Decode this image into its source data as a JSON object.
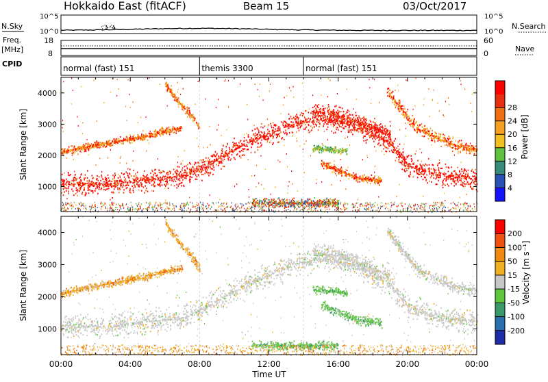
{
  "header": {
    "radar": "Hokkaido East (fitACF)",
    "beam": "Beam 15",
    "date": "03/Oct/2017"
  },
  "top_panels": {
    "nsky_label": "N.Sky",
    "nsearch_label": "N.Search",
    "noise_ticks": [
      "10^5",
      "10^0"
    ],
    "freq_label": "Freq.",
    "freq_unit": "[MHz]",
    "freq_ticks": [
      "18",
      "8"
    ],
    "nave_label": "Nave",
    "nave_ticks": [
      "60",
      "0"
    ],
    "cpid_label": "CPID",
    "cpid_segments": [
      {
        "label": "normal (fast) 151",
        "start": 0,
        "end": 8
      },
      {
        "label": "themis 3300",
        "start": 8,
        "end": 14
      },
      {
        "label": "normal (fast) 151",
        "start": 14,
        "end": 24
      }
    ]
  },
  "chart_data": [
    {
      "type": "heatmap",
      "name": "power",
      "ylabel": "Slant Range [km]",
      "ylim": [
        200,
        4500
      ],
      "yticks": [
        1000,
        2000,
        3000,
        4000
      ],
      "xlim": [
        0,
        24
      ],
      "colorbar": {
        "label": "Power [dB]",
        "ticks": [
          "4",
          "8",
          "12",
          "16",
          "20",
          "24",
          "28"
        ],
        "colors": [
          "#1414ff",
          "#2c52b8",
          "#3a8c7a",
          "#60c040",
          "#f0c020",
          "#f5a020",
          "#f07010",
          "#e83010",
          "#ff0000"
        ]
      },
      "bands": [
        {
          "t": [
            0,
            3,
            5,
            7,
            8,
            10,
            11,
            12,
            13,
            14,
            15,
            17,
            19,
            20,
            22,
            24
          ],
          "r": [
            1100,
            1100,
            1250,
            1350,
            1600,
            2200,
            2500,
            2700,
            2950,
            3100,
            3200,
            3000,
            2400,
            1700,
            1350,
            1250
          ],
          "w": 450,
          "level": "strong"
        },
        {
          "t": [
            0,
            1,
            2,
            3,
            4,
            5,
            6,
            7
          ],
          "r": [
            2100,
            2250,
            2350,
            2450,
            2550,
            2650,
            2800,
            2900
          ],
          "w": 150,
          "level": "medium"
        },
        {
          "t": [
            6,
            6.8,
            7.5,
            8
          ],
          "r": [
            4300,
            3700,
            3300,
            2900
          ],
          "w": 180,
          "level": "medium"
        },
        {
          "t": [
            14.5,
            16,
            17.5,
            19
          ],
          "r": [
            3400,
            3300,
            3000,
            2700
          ],
          "w": 350,
          "level": "strong"
        },
        {
          "t": [
            18.8,
            19.5,
            20.5,
            22,
            23,
            24
          ],
          "r": [
            4100,
            3600,
            2900,
            2500,
            2300,
            2200
          ],
          "w": 250,
          "level": "medium"
        },
        {
          "t": [
            15,
            16,
            17,
            18.5
          ],
          "r": [
            1750,
            1550,
            1300,
            1200
          ],
          "w": 180,
          "level": "medium"
        },
        {
          "t": [
            14.5,
            15.5,
            16.5
          ],
          "r": [
            2250,
            2200,
            2150
          ],
          "w": 150,
          "level": "weak"
        },
        {
          "t": [
            11,
            12.5,
            14,
            15,
            16
          ],
          "r": [
            500,
            500,
            500,
            500,
            500
          ],
          "w": 170,
          "level": "mixed"
        }
      ]
    },
    {
      "type": "heatmap",
      "name": "velocity",
      "ylabel": "Slant Range [km]",
      "xlabel": "Time UT",
      "ylim": [
        200,
        4500
      ],
      "yticks": [
        1000,
        2000,
        3000,
        4000
      ],
      "xlim": [
        0,
        24
      ],
      "xtick_labels": [
        "00:00",
        "04:00",
        "08:00",
        "12:00",
        "16:00",
        "20:00",
        "00:00"
      ],
      "colorbar": {
        "label": "Velocity [m s⁻¹]",
        "ticks": [
          "200",
          "100",
          "50",
          "15",
          "-15",
          "-50",
          "-100",
          "-200"
        ],
        "colors": [
          "#1e2ca8",
          "#2a6fb0",
          "#3a9a6a",
          "#60c840",
          "#c8c8c8",
          "#f0b020",
          "#f08a10",
          "#f05010",
          "#ff0000"
        ]
      },
      "bands": [
        {
          "t": [
            0,
            3,
            5,
            7,
            8,
            10,
            11,
            12,
            13,
            14,
            15,
            17,
            19,
            20,
            22,
            24
          ],
          "r": [
            1100,
            1100,
            1250,
            1350,
            1600,
            2200,
            2500,
            2700,
            2950,
            3100,
            3200,
            3000,
            2400,
            1700,
            1350,
            1250
          ],
          "w": 450,
          "level": "ground"
        },
        {
          "t": [
            0,
            1,
            2,
            3,
            4,
            5,
            6,
            7
          ],
          "r": [
            2100,
            2250,
            2350,
            2450,
            2550,
            2650,
            2800,
            2900
          ],
          "w": 150,
          "level": "away"
        },
        {
          "t": [
            6,
            6.8,
            7.5,
            8
          ],
          "r": [
            4300,
            3700,
            3300,
            2900
          ],
          "w": 180,
          "level": "away"
        },
        {
          "t": [
            14.5,
            16,
            17.5,
            19
          ],
          "r": [
            3400,
            3300,
            3000,
            2700
          ],
          "w": 350,
          "level": "ground"
        },
        {
          "t": [
            18.8,
            19.5,
            20.5,
            22,
            23,
            24
          ],
          "r": [
            4100,
            3600,
            2900,
            2500,
            2300,
            2200
          ],
          "w": 250,
          "level": "ground"
        },
        {
          "t": [
            15,
            16,
            17,
            18.5
          ],
          "r": [
            1750,
            1550,
            1300,
            1200
          ],
          "w": 180,
          "level": "toward"
        },
        {
          "t": [
            14.5,
            15.5,
            16.5
          ],
          "r": [
            2250,
            2200,
            2150
          ],
          "w": 150,
          "level": "toward"
        },
        {
          "t": [
            11,
            12.5,
            14,
            15,
            16
          ],
          "r": [
            500,
            500,
            500,
            500,
            500
          ],
          "w": 170,
          "level": "toward"
        }
      ]
    }
  ]
}
